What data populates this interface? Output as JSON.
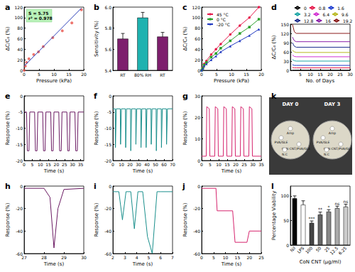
{
  "chart_data": [
    {
      "type": "scatter",
      "title": "a",
      "x_label": "Pressure (kPa)",
      "y_label": "ΔC/C₀ (%)",
      "annotations": [
        "S = 5.75",
        "r² = 0.978"
      ],
      "xlim": [
        0,
        20
      ],
      "xticks": [
        0,
        5,
        10,
        15,
        20
      ],
      "ylim": [
        0,
        120
      ],
      "yticks": [
        0,
        20,
        40,
        60,
        80,
        100,
        120
      ],
      "series": [
        {
          "type": "scatter",
          "color": "#e8524a",
          "marker": "circle",
          "x": [
            0,
            0.4,
            0.8,
            1.6,
            3.2,
            4.8,
            6.4,
            9.6,
            12.8,
            16,
            19.2
          ],
          "values": [
            0,
            8,
            15,
            22,
            30,
            35,
            45,
            62,
            75,
            90,
            115
          ]
        },
        {
          "type": "line",
          "color": "#2b3fb8",
          "x": [
            0,
            19.2
          ],
          "values": [
            8,
            118
          ]
        }
      ]
    },
    {
      "type": "bar",
      "title": "b",
      "y_label": "Sensitivity (%)",
      "categories": [
        "RT",
        "80% RH",
        "RT"
      ],
      "values": [
        5.7,
        5.9,
        5.72
      ],
      "errors": [
        0.05,
        0.05,
        0.04
      ],
      "colors": [
        "#7d1f6d",
        "#20b2b0",
        "#7d1f6d"
      ],
      "ylim": [
        5.4,
        6.0
      ],
      "yticks": [
        5.4,
        5.6,
        5.8,
        {
          "value": 6,
          "label": "6.0"
        }
      ]
    },
    {
      "type": "line",
      "title": "c",
      "x_label": "Pressure (kPa)",
      "y_label": "ΔC/C₀ (%)",
      "legend": "top-left",
      "x": [
        0,
        0.4,
        0.8,
        1.6,
        3.2,
        4.8,
        6.4,
        9.6,
        12.8,
        16,
        19.2
      ],
      "xlim": [
        0,
        20
      ],
      "xticks": [
        0,
        5,
        10,
        15,
        20
      ],
      "ylim": [
        0,
        120
      ],
      "yticks": [
        0,
        20,
        40,
        60,
        80,
        100,
        120
      ],
      "series": [
        {
          "name": "45 °C",
          "color": "#e6194b",
          "marker": "circle",
          "values": [
            0,
            5,
            12,
            18,
            30,
            40,
            50,
            68,
            85,
            100,
            120
          ]
        },
        {
          "name": "0 °C",
          "color": "#2ca02c",
          "marker": "square",
          "values": [
            0,
            4,
            10,
            15,
            25,
            32,
            42,
            56,
            70,
            82,
            97
          ]
        },
        {
          "name": "-20 °C",
          "color": "#2038c0",
          "marker": "triangle",
          "values": [
            0,
            3,
            8,
            12,
            20,
            27,
            35,
            46,
            56,
            66,
            78
          ]
        }
      ]
    },
    {
      "type": "line",
      "title": "d",
      "x_label": "No. of Days",
      "y_label": "ΔC/C₀ (%)",
      "legend": "top",
      "x": [
        1,
        2,
        3,
        5,
        10,
        15,
        20,
        25,
        30
      ],
      "xlim": [
        0,
        30
      ],
      "xticks": [
        5,
        10,
        15,
        20,
        25,
        30
      ],
      "ylim": [
        0,
        150
      ],
      "yticks": [
        0,
        30,
        60,
        90,
        120,
        150
      ],
      "series": [
        {
          "name": "0",
          "color": "#000000",
          "values": [
            0,
            0,
            0,
            0,
            0,
            0,
            0,
            0,
            0
          ]
        },
        {
          "name": "0.8",
          "color": "#e6194b",
          "values": [
            9,
            8,
            8,
            8,
            8,
            8,
            8,
            8,
            8
          ]
        },
        {
          "name": "1.6",
          "color": "#1f3fd0",
          "values": [
            18,
            16,
            16,
            16,
            16,
            16,
            16,
            16,
            16
          ]
        },
        {
          "name": "3.2",
          "color": "#1aa5a5",
          "values": [
            35,
            31,
            30,
            30,
            30,
            30,
            30,
            30,
            30
          ]
        },
        {
          "name": "6.4",
          "color": "#d12fd1",
          "values": [
            50,
            45,
            44,
            44,
            44,
            44,
            44,
            44,
            44
          ]
        },
        {
          "name": "9.6",
          "color": "#b8b81f",
          "values": [
            65,
            60,
            58,
            58,
            58,
            58,
            58,
            58,
            58
          ]
        },
        {
          "name": "12.8",
          "color": "#1f2f8f",
          "values": [
            90,
            78,
            75,
            75,
            75,
            75,
            75,
            75,
            75
          ]
        },
        {
          "name": "16",
          "color": "#8b1fa8",
          "values": [
            108,
            96,
            93,
            93,
            93,
            93,
            93,
            93,
            93
          ]
        },
        {
          "name": "19.2",
          "color": "#8b1a1a",
          "values": [
            150,
            125,
            120,
            120,
            120,
            120,
            120,
            120,
            120
          ]
        }
      ]
    },
    {
      "type": "line",
      "title": "e",
      "x_label": "Time (s)",
      "y_label": "Response (%)",
      "xlim": [
        0,
        37
      ],
      "xticks": [
        0,
        5,
        10,
        15,
        20,
        25,
        30,
        35
      ],
      "ylim": [
        -20,
        0
      ],
      "yticks": [
        -20,
        -15,
        -10,
        -5,
        0
      ],
      "series": [
        {
          "color": "#6b1a63",
          "x": [
            0,
            1.5,
            2,
            3,
            3.5,
            6.5,
            7,
            8,
            8.5,
            11.5,
            12,
            13,
            13.5,
            16.5,
            17,
            18,
            18.5,
            21.5,
            22,
            23,
            23.5,
            26.5,
            27,
            28,
            28.5,
            31.5,
            32,
            33,
            33.5,
            37
          ],
          "values": [
            -5,
            -5,
            -17,
            -17,
            -5,
            -5,
            -17,
            -17,
            -5,
            -5,
            -17,
            -17,
            -5,
            -5,
            -17,
            -17,
            -5,
            -5,
            -17,
            -17,
            -5,
            -5,
            -17,
            -17,
            -5,
            -5,
            -17,
            -17,
            -5,
            -5
          ]
        }
      ]
    },
    {
      "type": "line",
      "title": "f",
      "x_label": "Time (s)",
      "y_label": "Response (%)",
      "xlim": [
        0,
        70
      ],
      "xticks": [
        0,
        10,
        20,
        30,
        40,
        50,
        60,
        70
      ],
      "ylim": [
        -20,
        0
      ],
      "yticks": [
        -20,
        -15,
        -10,
        -5,
        0
      ],
      "series": [
        {
          "color": "#1a8f8c",
          "x": [
            0,
            2.7,
            3,
            4,
            8.7,
            9,
            10,
            14.7,
            15,
            16,
            20.7,
            21,
            22,
            26.7,
            27,
            28,
            32.7,
            33,
            34,
            38.7,
            39,
            40,
            44.7,
            45,
            46,
            50.7,
            51,
            52,
            56.7,
            57,
            58,
            62.7,
            63,
            64,
            70
          ],
          "values": [
            -4,
            -4,
            -16,
            -4,
            -4,
            -15,
            -4,
            -4,
            -16,
            -4,
            -4,
            -17,
            -4,
            -4,
            -15,
            -4,
            -4,
            -16,
            -4,
            -4,
            -16,
            -4,
            -4,
            -15,
            -4,
            -4,
            -17,
            -4,
            -4,
            -16,
            -4,
            -4,
            -15,
            -4,
            -4
          ]
        }
      ]
    },
    {
      "type": "line",
      "title": "g",
      "x_label": "Time (s)",
      "y_label": "Response (%)",
      "xlim": [
        0,
        35
      ],
      "xticks": [
        0,
        5,
        10,
        15,
        20,
        25,
        30,
        35
      ],
      "ylim": [
        0,
        30
      ],
      "yticks": [
        0,
        10,
        20,
        30
      ],
      "series": [
        {
          "color": "#d6246e",
          "x": [
            0,
            2.7,
            3,
            4.5,
            4.8,
            7.7,
            8,
            9.5,
            9.8,
            12.7,
            13,
            14.5,
            14.8,
            17.7,
            18,
            19.5,
            19.8,
            22.7,
            23,
            24.5,
            24.8,
            27.7,
            28,
            29.5,
            29.8,
            35
          ],
          "values": [
            2,
            2,
            25,
            24,
            2,
            2,
            25,
            24,
            2,
            2,
            25,
            24,
            2,
            2,
            25,
            24,
            2,
            2,
            25,
            24,
            2,
            2,
            25,
            24,
            2,
            2
          ]
        }
      ]
    },
    {
      "type": "diagram",
      "title": "k",
      "dishes": [
        {
          "label": "DAY 0",
          "discs": [
            "Amp",
            "PVA/GLE",
            "CoN CNT/PVA/GLE",
            "N.C"
          ]
        },
        {
          "label": "DAY 3",
          "discs": [
            "Amp",
            "PVA/GLE",
            "CoN CNT/PVA/GLE",
            "N.C"
          ]
        }
      ]
    },
    {
      "type": "line",
      "title": "h",
      "x_label": "Time (s)",
      "y_label": "Response (%)",
      "xlim": [
        27,
        30
      ],
      "xticks": [
        27,
        28,
        29,
        30
      ],
      "ylim": [
        -60,
        0
      ],
      "yticks": [
        -60,
        -40,
        -20,
        0
      ],
      "series": [
        {
          "color": "#6b1a63",
          "x": [
            27,
            28,
            28.3,
            28.5,
            28.7,
            29,
            30
          ],
          "values": [
            -2,
            -2,
            -10,
            -55,
            -20,
            -3,
            -2
          ]
        }
      ]
    },
    {
      "type": "line",
      "title": "i",
      "x_label": "Time (s)",
      "y_label": "Response (%)",
      "xlim": [
        2,
        7
      ],
      "xticks": [
        2,
        3,
        4,
        5,
        6,
        7
      ],
      "ylim": [
        -60,
        0
      ],
      "yticks": [
        -60,
        -40,
        -20,
        0
      ],
      "series": [
        {
          "color": "#1a8f8c",
          "x": [
            2,
            2.5,
            2.8,
            3.1,
            3.5,
            3.8,
            4.1,
            4.5,
            4.9,
            5.3,
            5.7,
            6,
            7
          ],
          "values": [
            -5,
            -5,
            -30,
            -5,
            -5,
            -38,
            -5,
            -5,
            -45,
            -60,
            -5,
            -5,
            -5
          ]
        }
      ]
    },
    {
      "type": "line",
      "title": "j",
      "x_label": "Time (s)",
      "y_label": "Response (%)",
      "xlim": [
        0,
        25
      ],
      "xticks": [
        0,
        5,
        10,
        15,
        20,
        25
      ],
      "ylim": [
        -60,
        0
      ],
      "yticks": [
        -60,
        -40,
        -20,
        0
      ],
      "series": [
        {
          "color": "#d6246e",
          "x": [
            0,
            6,
            6.5,
            13,
            14,
            19,
            20,
            25
          ],
          "values": [
            -2,
            -2,
            -22,
            -22,
            -50,
            -50,
            -40,
            -40
          ]
        }
      ]
    },
    {
      "type": "bar",
      "title": "l",
      "x_label": "CoN CNT (µg/ml)",
      "y_label": "Percentage Viability",
      "categories": [
        "Nil",
        "LPS",
        "100",
        "50",
        "25",
        "12.5",
        "6.25"
      ],
      "values": [
        95,
        82,
        45,
        62,
        68,
        75,
        78
      ],
      "errors": [
        5,
        8,
        4,
        5,
        4,
        4,
        5
      ],
      "annotations": [
        null,
        null,
        "***",
        "**",
        "*",
        "ns",
        "ns"
      ],
      "colors": [
        "#000000",
        "#ffffff",
        "#444444",
        "#666666",
        "#888888",
        "#aaaaaa",
        "#cccccc"
      ],
      "ylim": [
        0,
        120
      ],
      "yticks": [
        0,
        50,
        100
      ]
    }
  ]
}
